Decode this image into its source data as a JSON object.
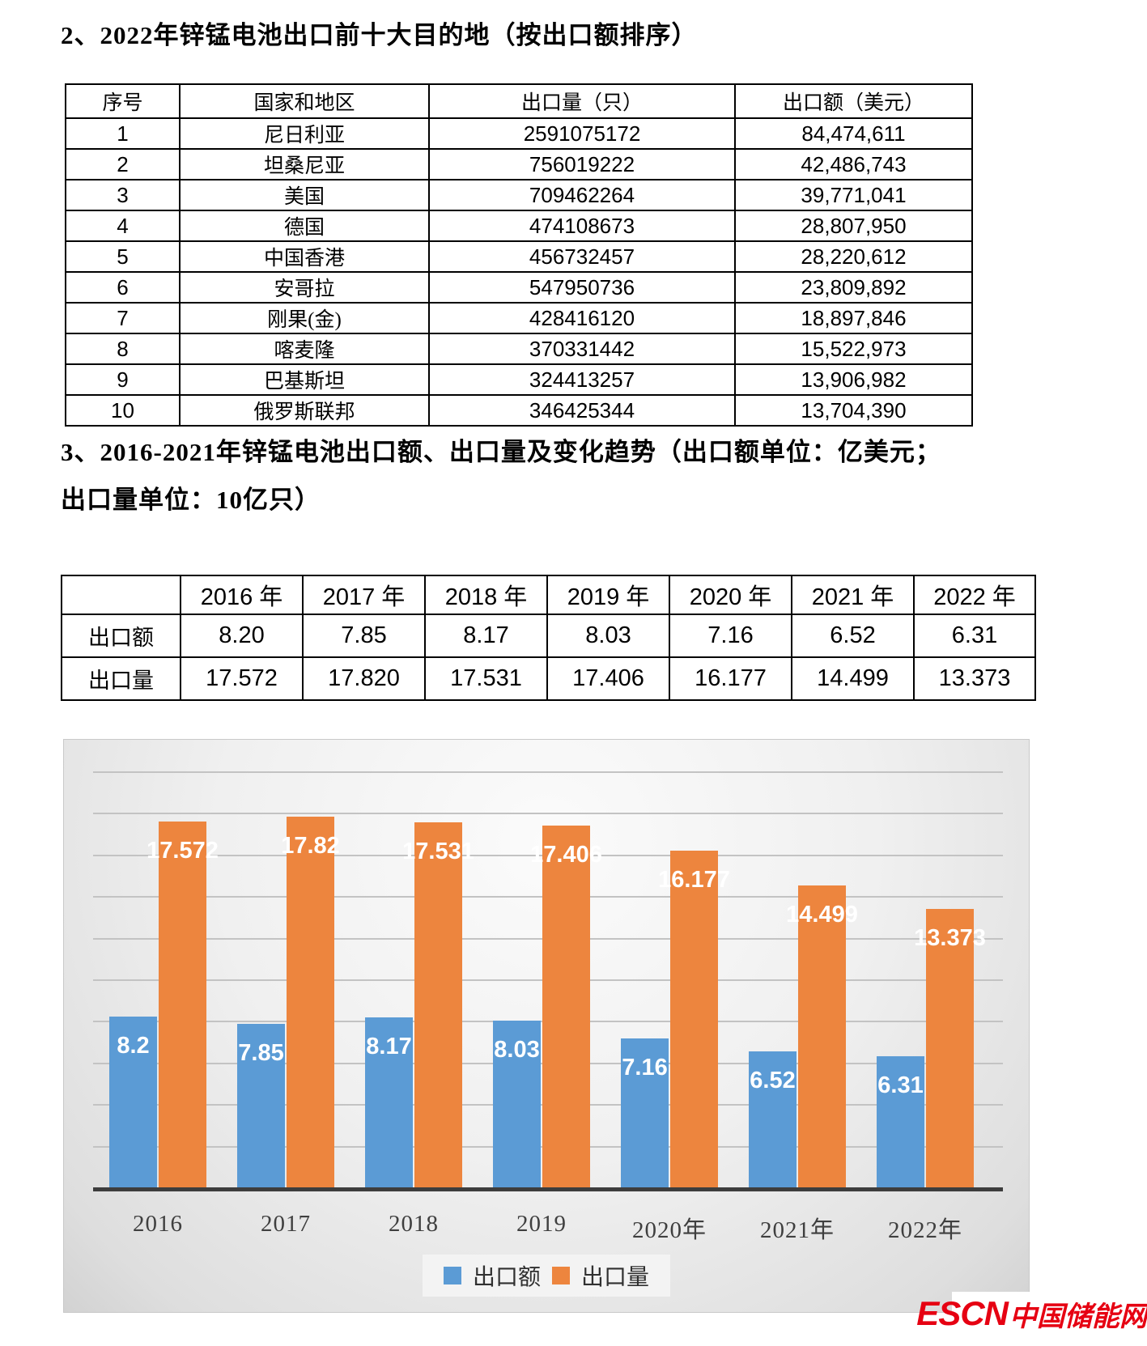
{
  "sections": {
    "top10_heading": "2、2022年锌锰电池出口前十大目的地（按出口额排序）",
    "trend_heading_line1": "3、2016-2021年锌锰电池出口额、出口量及变化趋势（出口额单位：亿美元；",
    "trend_heading_line2": "出口量单位：10亿只）"
  },
  "top10_table": {
    "headers": [
      "序号",
      "国家和地区",
      "出口量（只）",
      "出口额（美元）"
    ],
    "rows": [
      [
        "1",
        "尼日利亚",
        "2591075172",
        "84,474,611"
      ],
      [
        "2",
        "坦桑尼亚",
        "756019222",
        "42,486,743"
      ],
      [
        "3",
        "美国",
        "709462264",
        "39,771,041"
      ],
      [
        "4",
        "德国",
        "474108673",
        "28,807,950"
      ],
      [
        "5",
        "中国香港",
        "456732457",
        "28,220,612"
      ],
      [
        "6",
        "安哥拉",
        "547950736",
        "23,809,892"
      ],
      [
        "7",
        "刚果(金)",
        "428416120",
        "18,897,846"
      ],
      [
        "8",
        "喀麦隆",
        "370331442",
        "15,522,973"
      ],
      [
        "9",
        "巴基斯坦",
        "324413257",
        "13,906,982"
      ],
      [
        "10",
        "俄罗斯联邦",
        "346425344",
        "13,704,390"
      ]
    ]
  },
  "trend_table": {
    "headers": [
      "",
      "2016 年",
      "2017 年",
      "2018 年",
      "2019 年",
      "2020 年",
      "2021 年",
      "2022 年"
    ],
    "rows": [
      [
        "出口额",
        "8.20",
        "7.85",
        "8.17",
        "8.03",
        "7.16",
        "6.52",
        "6.31"
      ],
      [
        "出口量",
        "17.572",
        "17.820",
        "17.531",
        "17.406",
        "16.177",
        "14.499",
        "13.373"
      ]
    ]
  },
  "chart_data": {
    "type": "bar",
    "title": "",
    "xlabel": "",
    "ylabel": "",
    "categories": [
      "2016",
      "2017",
      "2018",
      "2019",
      "2020年",
      "2021年",
      "2022年"
    ],
    "series": [
      {
        "name": "出口额",
        "color": "#5b9bd5",
        "values": [
          8.2,
          7.85,
          8.17,
          8.03,
          7.16,
          6.52,
          6.31
        ],
        "labels": [
          "8.2",
          "7.85",
          "8.17",
          "8.03",
          "7.16",
          "6.52",
          "6.31"
        ]
      },
      {
        "name": "出口量",
        "color": "#ed853e",
        "values": [
          17.572,
          17.82,
          17.531,
          17.406,
          16.177,
          14.499,
          13.373
        ],
        "labels": [
          "17.572",
          "17.82",
          "17.531",
          "17.406",
          "16.177",
          "14.499",
          "13.373"
        ]
      }
    ],
    "ylim": [
      0,
      20
    ],
    "gridline_step": 2,
    "grid": true,
    "legend_position": "bottom",
    "colors": {
      "gridline": "#c3c3c3",
      "axis": "#3d3d3d",
      "plot_bg": "#ededed",
      "label_text": "#ffffff"
    }
  },
  "logo": {
    "text_en": "ESCN",
    "text_cn": "中国储能网",
    "color": "#e60012"
  }
}
